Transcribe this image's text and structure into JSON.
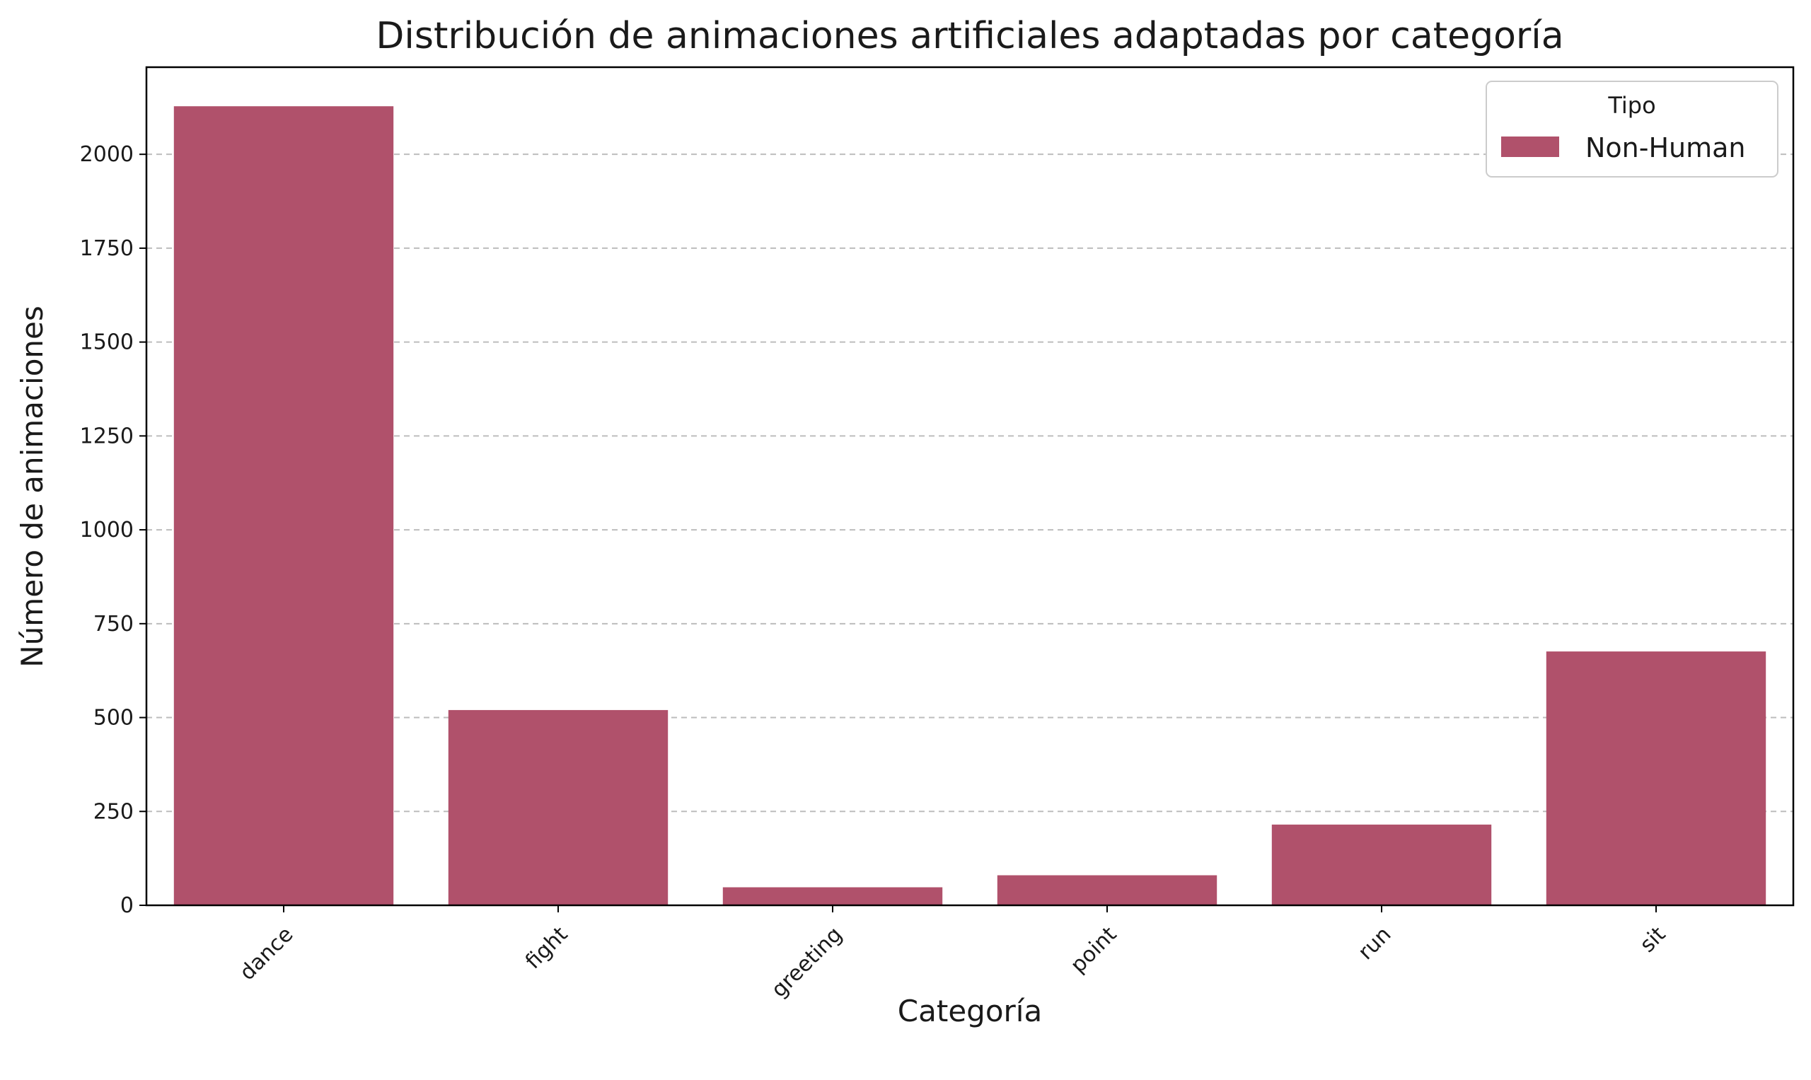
{
  "chart_data": {
    "type": "bar",
    "title": "Distribución de animaciones artificiales adaptadas por categoría",
    "xlabel": "Categoría",
    "ylabel": "Número de animaciones",
    "categories": [
      "dance",
      "fight",
      "greeting",
      "point",
      "run",
      "sit"
    ],
    "series": [
      {
        "name": "Non-Human",
        "values": [
          2128,
          520,
          48,
          80,
          215,
          676
        ],
        "color": "#b0516b"
      }
    ],
    "ylim": [
      0,
      2232
    ],
    "yticks": [
      0,
      250,
      500,
      750,
      1000,
      1250,
      1500,
      1750,
      2000
    ],
    "grid": "y-dashed",
    "legend": {
      "title": "Tipo",
      "placement": "top-right"
    }
  }
}
